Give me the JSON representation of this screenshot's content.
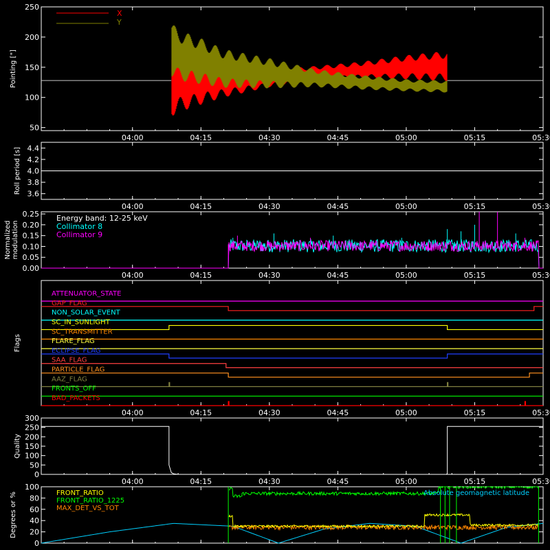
{
  "x_ticks": [
    "04:00",
    "04:15",
    "04:30",
    "04:45",
    "05:00",
    "05:15",
    "05:30"
  ],
  "x_tick_minutes": [
    0,
    15,
    30,
    45,
    60,
    75,
    90
  ],
  "x_range_minutes": [
    -20,
    90
  ],
  "colors": {
    "x_series": "#ff0000",
    "y_series": "#808000",
    "baseline": "#c8c8c8",
    "axes": "#ffffff",
    "quality": "#ffffff",
    "modulation_collimator8": "#00ffff",
    "modulation_collimator9": "#ff00ff",
    "latitude": "#00d0ff",
    "front_ratio": "#ffff00",
    "front_ratio_1225": "#00ff00",
    "max_det_vs_tot": "#ff8800"
  },
  "panels": {
    "pointing": {
      "ylabel": "Pointing [\"]",
      "yticks": [
        "50",
        "100",
        "150",
        "200",
        "250"
      ],
      "ytick_values": [
        50,
        100,
        150,
        200,
        250
      ],
      "ylim": [
        45,
        250
      ],
      "legend": [
        "X",
        "Y"
      ]
    },
    "roll": {
      "ylabel": "Roll period [s]",
      "yticks": [
        "3.6",
        "3.8",
        "4.0",
        "4.2",
        "4.4"
      ],
      "ytick_values": [
        3.6,
        3.8,
        4.0,
        4.2,
        4.4
      ],
      "ylim": [
        3.5,
        4.5
      ]
    },
    "modulation": {
      "ylabel_line1": "Normalized",
      "ylabel_line2": "modulation",
      "yticks": [
        "0.00",
        "0.05",
        "0.10",
        "0.15",
        "0.20",
        "0.25"
      ],
      "ytick_values": [
        0,
        0.05,
        0.1,
        0.15,
        0.2,
        0.25
      ],
      "ylim": [
        0,
        0.26
      ],
      "annotations": [
        "Energy band: 12-25 keV",
        "Collimator 8",
        "Collimator 9"
      ]
    },
    "flags": {
      "ylabel": "Flags",
      "items": [
        {
          "name": "ATTENUATOR_STATE",
          "color": "#ff00ff"
        },
        {
          "name": "GAP_FLAG",
          "color": "#ff2020"
        },
        {
          "name": "NON_SOLAR_EVENT",
          "color": "#00ffff"
        },
        {
          "name": "SC_IN_SUNLIGHT",
          "color": "#ffff00"
        },
        {
          "name": "SC_TRANSMITTER",
          "color": "#ff8800"
        },
        {
          "name": "FLARE_FLAG",
          "color": "#ffff40"
        },
        {
          "name": "ECLIPSE_FLAG",
          "color": "#2040ff"
        },
        {
          "name": "SAA_FLAG",
          "color": "#ff4040"
        },
        {
          "name": "PARTICLE_FLAG",
          "color": "#ff9020"
        },
        {
          "name": "AAZ_FLAG",
          "color": "#808040"
        },
        {
          "name": "FRONTS_OFF",
          "color": "#00ff00"
        },
        {
          "name": "BAD_PACKETS",
          "color": "#ff0000"
        }
      ]
    },
    "quality": {
      "ylabel": "Quality",
      "yticks": [
        "0",
        "50",
        "100",
        "150",
        "200",
        "250",
        "300"
      ],
      "ytick_values": [
        0,
        50,
        100,
        150,
        200,
        250,
        300
      ],
      "ylim": [
        0,
        300
      ]
    },
    "ratios": {
      "ylabel": "Degrees or %",
      "yticks": [
        "0",
        "20",
        "40",
        "60",
        "80",
        "100"
      ],
      "ytick_values": [
        0,
        20,
        40,
        60,
        80,
        100
      ],
      "ylim": [
        0,
        100
      ],
      "legend": [
        "FRONT_RATIO",
        "FRONT_RATIO_1225",
        "MAX_DET_VS_TOT"
      ],
      "annotation": "Absolute geomagnetic latitude"
    }
  },
  "chart_data": [
    {
      "type": "line",
      "ylabel": "Pointing [\"]",
      "xlim_minutes": [
        -20,
        90
      ],
      "ylim": [
        45,
        250
      ],
      "series": [
        {
          "name": "X",
          "x_minutes": [
            -20,
            8.5,
            8.5,
            10,
            15,
            20,
            30,
            40,
            50,
            60,
            69,
            69,
            90
          ],
          "center": [
            128,
            128,
            128,
            125,
            128,
            128,
            132,
            140,
            145,
            150,
            152,
            128,
            128
          ],
          "half_amplitude": [
            0,
            0,
            60,
            50,
            40,
            28,
            15,
            12,
            14,
            20,
            25,
            0,
            0
          ]
        },
        {
          "name": "Y",
          "x_minutes": [
            -20,
            8.5,
            8.5,
            10,
            15,
            20,
            30,
            40,
            50,
            60,
            69,
            69,
            90
          ],
          "center": [
            128,
            128,
            180,
            170,
            160,
            148,
            140,
            132,
            125,
            120,
            118,
            128,
            128
          ],
          "half_amplitude": [
            0,
            0,
            45,
            42,
            38,
            32,
            25,
            15,
            12,
            10,
            10,
            0,
            0
          ]
        }
      ]
    },
    {
      "type": "line",
      "ylabel": "Roll period [s]",
      "series": [
        {
          "name": "",
          "x_minutes": [
            -20,
            90
          ],
          "y": [
            4.0,
            4.0
          ]
        }
      ]
    },
    {
      "type": "line",
      "ylabel_line1": "Normalized",
      "ylabel_line2": "modulation",
      "series": [
        {
          "name": "Collimator 8",
          "segments": [
            [
              -20,
              21,
              0.0
            ],
            [
              21,
              89,
              0.1
            ]
          ],
          "noise": 0.03,
          "spikes": [
            [
              22,
              0.14
            ],
            [
              31,
              0.16
            ],
            [
              44,
              0.15
            ],
            [
              59,
              0.14
            ],
            [
              69,
              0.18
            ],
            [
              72,
              0.17
            ],
            [
              75,
              0.2
            ],
            [
              84,
              0.16
            ]
          ]
        },
        {
          "name": "Collimator 9",
          "segments": [
            [
              -20,
              21,
              0.0
            ],
            [
              21,
              89,
              0.1
            ]
          ],
          "noise": 0.025,
          "spikes": [
            [
              23,
              0.15
            ],
            [
              39,
              0.14
            ],
            [
              76,
              0.26
            ],
            [
              80,
              0.26
            ],
            [
              86,
              0.14
            ]
          ]
        }
      ]
    },
    {
      "type": "line",
      "ylabel": "Flags",
      "series": [
        {
          "name": "ATTENUATOR_STATE",
          "steps": [
            [
              -20,
              90,
              0
            ]
          ]
        },
        {
          "name": "GAP_FLAG",
          "steps": [
            [
              -20,
              21,
              1
            ],
            [
              21,
              88,
              0
            ],
            [
              88,
              90,
              1
            ]
          ]
        },
        {
          "name": "NON_SOLAR_EVENT",
          "steps": [
            [
              -20,
              90,
              0
            ]
          ]
        },
        {
          "name": "SC_IN_SUNLIGHT",
          "steps": [
            [
              -20,
              8,
              0
            ],
            [
              8,
              69,
              1
            ],
            [
              69,
              90,
              0
            ]
          ]
        },
        {
          "name": "SC_TRANSMITTER",
          "steps": [
            [
              -20,
              90,
              0
            ]
          ]
        },
        {
          "name": "FLARE_FLAG",
          "steps": [
            [
              -20,
              90,
              0
            ]
          ]
        },
        {
          "name": "ECLIPSE_FLAG",
          "steps": [
            [
              -20,
              8,
              1
            ],
            [
              8,
              69,
              0
            ],
            [
              69,
              90,
              1
            ]
          ]
        },
        {
          "name": "SAA_FLAG",
          "steps": [
            [
              -20,
              20.5,
              1
            ],
            [
              20.5,
              90,
              0
            ]
          ]
        },
        {
          "name": "PARTICLE_FLAG",
          "steps": [
            [
              -20,
              21,
              1
            ],
            [
              21,
              87,
              0
            ],
            [
              87,
              90,
              1
            ]
          ]
        },
        {
          "name": "AAZ_FLAG",
          "pulses": [
            8,
            69
          ]
        },
        {
          "name": "FRONTS_OFF",
          "steps": [
            [
              -20,
              90,
              0
            ]
          ]
        },
        {
          "name": "BAD_PACKETS",
          "pulses": [
            21,
            86
          ]
        }
      ]
    },
    {
      "type": "line",
      "ylabel": "Quality",
      "series": [
        {
          "name": "",
          "x_minutes": [
            -20,
            8,
            8,
            8.5,
            9,
            10,
            68.8,
            69,
            69,
            90
          ],
          "y": [
            255,
            255,
            50,
            10,
            3,
            0,
            0,
            5,
            255,
            255
          ]
        }
      ]
    },
    {
      "type": "line",
      "ylabel": "Degrees or %",
      "series": [
        {
          "name": "FRONT_RATIO",
          "segments": [
            [
              21,
              22,
              48
            ],
            [
              22,
              64,
              30
            ],
            [
              64,
              74,
              50
            ],
            [
              74,
              89,
              32
            ]
          ],
          "noise": 2
        },
        {
          "name": "FRONT_RATIO_1225",
          "segments": [
            [
              21,
              22,
              97
            ],
            [
              22,
              24,
              83
            ],
            [
              24,
              67,
              88
            ],
            [
              67,
              89,
              100
            ]
          ],
          "noise": 3
        },
        {
          "name": "MAX_DET_VS_TOT",
          "segments": [
            [
              21,
              89,
              28
            ]
          ],
          "noise": 4
        },
        {
          "name": "Absolute geomagnetic latitude",
          "x_minutes": [
            -20,
            -5,
            9,
            22,
            32,
            42,
            52,
            62,
            72,
            82,
            90
          ],
          "y": [
            0,
            20,
            35,
            30,
            0,
            25,
            35,
            30,
            0,
            28,
            35
          ]
        }
      ]
    }
  ]
}
